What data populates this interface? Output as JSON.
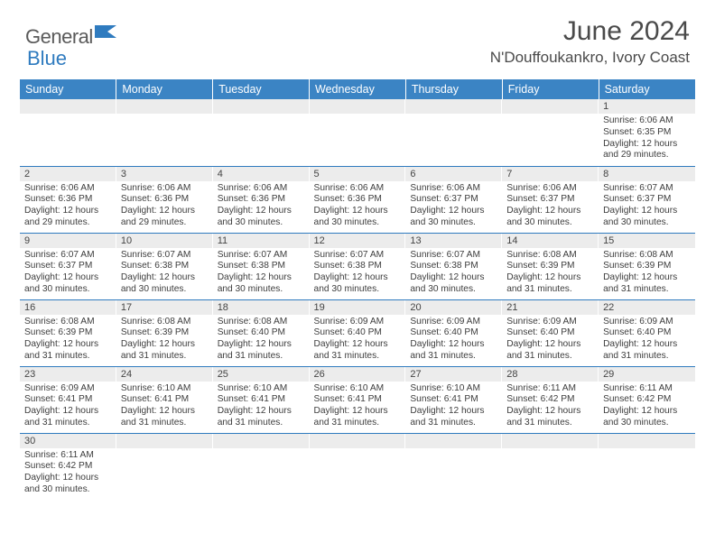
{
  "logo": {
    "part1": "General",
    "part2": "Blue"
  },
  "title": "June 2024",
  "location": "N'Douffoukankro, Ivory Coast",
  "colors": {
    "header_bg": "#3b84c4",
    "header_text": "#ffffff",
    "daynum_bg": "#ececec",
    "border": "#2f7bbf",
    "logo_gray": "#5a5a5a",
    "logo_blue": "#2f7bbf",
    "title_color": "#4a4a4a"
  },
  "dayHeaders": [
    "Sunday",
    "Monday",
    "Tuesday",
    "Wednesday",
    "Thursday",
    "Friday",
    "Saturday"
  ],
  "weeks": [
    [
      {
        "n": "",
        "lines": []
      },
      {
        "n": "",
        "lines": []
      },
      {
        "n": "",
        "lines": []
      },
      {
        "n": "",
        "lines": []
      },
      {
        "n": "",
        "lines": []
      },
      {
        "n": "",
        "lines": []
      },
      {
        "n": "1",
        "lines": [
          "Sunrise: 6:06 AM",
          "Sunset: 6:35 PM",
          "Daylight: 12 hours",
          "and 29 minutes."
        ]
      }
    ],
    [
      {
        "n": "2",
        "lines": [
          "Sunrise: 6:06 AM",
          "Sunset: 6:36 PM",
          "Daylight: 12 hours",
          "and 29 minutes."
        ]
      },
      {
        "n": "3",
        "lines": [
          "Sunrise: 6:06 AM",
          "Sunset: 6:36 PM",
          "Daylight: 12 hours",
          "and 29 minutes."
        ]
      },
      {
        "n": "4",
        "lines": [
          "Sunrise: 6:06 AM",
          "Sunset: 6:36 PM",
          "Daylight: 12 hours",
          "and 30 minutes."
        ]
      },
      {
        "n": "5",
        "lines": [
          "Sunrise: 6:06 AM",
          "Sunset: 6:36 PM",
          "Daylight: 12 hours",
          "and 30 minutes."
        ]
      },
      {
        "n": "6",
        "lines": [
          "Sunrise: 6:06 AM",
          "Sunset: 6:37 PM",
          "Daylight: 12 hours",
          "and 30 minutes."
        ]
      },
      {
        "n": "7",
        "lines": [
          "Sunrise: 6:06 AM",
          "Sunset: 6:37 PM",
          "Daylight: 12 hours",
          "and 30 minutes."
        ]
      },
      {
        "n": "8",
        "lines": [
          "Sunrise: 6:07 AM",
          "Sunset: 6:37 PM",
          "Daylight: 12 hours",
          "and 30 minutes."
        ]
      }
    ],
    [
      {
        "n": "9",
        "lines": [
          "Sunrise: 6:07 AM",
          "Sunset: 6:37 PM",
          "Daylight: 12 hours",
          "and 30 minutes."
        ]
      },
      {
        "n": "10",
        "lines": [
          "Sunrise: 6:07 AM",
          "Sunset: 6:38 PM",
          "Daylight: 12 hours",
          "and 30 minutes."
        ]
      },
      {
        "n": "11",
        "lines": [
          "Sunrise: 6:07 AM",
          "Sunset: 6:38 PM",
          "Daylight: 12 hours",
          "and 30 minutes."
        ]
      },
      {
        "n": "12",
        "lines": [
          "Sunrise: 6:07 AM",
          "Sunset: 6:38 PM",
          "Daylight: 12 hours",
          "and 30 minutes."
        ]
      },
      {
        "n": "13",
        "lines": [
          "Sunrise: 6:07 AM",
          "Sunset: 6:38 PM",
          "Daylight: 12 hours",
          "and 30 minutes."
        ]
      },
      {
        "n": "14",
        "lines": [
          "Sunrise: 6:08 AM",
          "Sunset: 6:39 PM",
          "Daylight: 12 hours",
          "and 31 minutes."
        ]
      },
      {
        "n": "15",
        "lines": [
          "Sunrise: 6:08 AM",
          "Sunset: 6:39 PM",
          "Daylight: 12 hours",
          "and 31 minutes."
        ]
      }
    ],
    [
      {
        "n": "16",
        "lines": [
          "Sunrise: 6:08 AM",
          "Sunset: 6:39 PM",
          "Daylight: 12 hours",
          "and 31 minutes."
        ]
      },
      {
        "n": "17",
        "lines": [
          "Sunrise: 6:08 AM",
          "Sunset: 6:39 PM",
          "Daylight: 12 hours",
          "and 31 minutes."
        ]
      },
      {
        "n": "18",
        "lines": [
          "Sunrise: 6:08 AM",
          "Sunset: 6:40 PM",
          "Daylight: 12 hours",
          "and 31 minutes."
        ]
      },
      {
        "n": "19",
        "lines": [
          "Sunrise: 6:09 AM",
          "Sunset: 6:40 PM",
          "Daylight: 12 hours",
          "and 31 minutes."
        ]
      },
      {
        "n": "20",
        "lines": [
          "Sunrise: 6:09 AM",
          "Sunset: 6:40 PM",
          "Daylight: 12 hours",
          "and 31 minutes."
        ]
      },
      {
        "n": "21",
        "lines": [
          "Sunrise: 6:09 AM",
          "Sunset: 6:40 PM",
          "Daylight: 12 hours",
          "and 31 minutes."
        ]
      },
      {
        "n": "22",
        "lines": [
          "Sunrise: 6:09 AM",
          "Sunset: 6:40 PM",
          "Daylight: 12 hours",
          "and 31 minutes."
        ]
      }
    ],
    [
      {
        "n": "23",
        "lines": [
          "Sunrise: 6:09 AM",
          "Sunset: 6:41 PM",
          "Daylight: 12 hours",
          "and 31 minutes."
        ]
      },
      {
        "n": "24",
        "lines": [
          "Sunrise: 6:10 AM",
          "Sunset: 6:41 PM",
          "Daylight: 12 hours",
          "and 31 minutes."
        ]
      },
      {
        "n": "25",
        "lines": [
          "Sunrise: 6:10 AM",
          "Sunset: 6:41 PM",
          "Daylight: 12 hours",
          "and 31 minutes."
        ]
      },
      {
        "n": "26",
        "lines": [
          "Sunrise: 6:10 AM",
          "Sunset: 6:41 PM",
          "Daylight: 12 hours",
          "and 31 minutes."
        ]
      },
      {
        "n": "27",
        "lines": [
          "Sunrise: 6:10 AM",
          "Sunset: 6:41 PM",
          "Daylight: 12 hours",
          "and 31 minutes."
        ]
      },
      {
        "n": "28",
        "lines": [
          "Sunrise: 6:11 AM",
          "Sunset: 6:42 PM",
          "Daylight: 12 hours",
          "and 31 minutes."
        ]
      },
      {
        "n": "29",
        "lines": [
          "Sunrise: 6:11 AM",
          "Sunset: 6:42 PM",
          "Daylight: 12 hours",
          "and 30 minutes."
        ]
      }
    ],
    [
      {
        "n": "30",
        "lines": [
          "Sunrise: 6:11 AM",
          "Sunset: 6:42 PM",
          "Daylight: 12 hours",
          "and 30 minutes."
        ]
      },
      {
        "n": "",
        "lines": []
      },
      {
        "n": "",
        "lines": []
      },
      {
        "n": "",
        "lines": []
      },
      {
        "n": "",
        "lines": []
      },
      {
        "n": "",
        "lines": []
      },
      {
        "n": "",
        "lines": []
      }
    ]
  ]
}
